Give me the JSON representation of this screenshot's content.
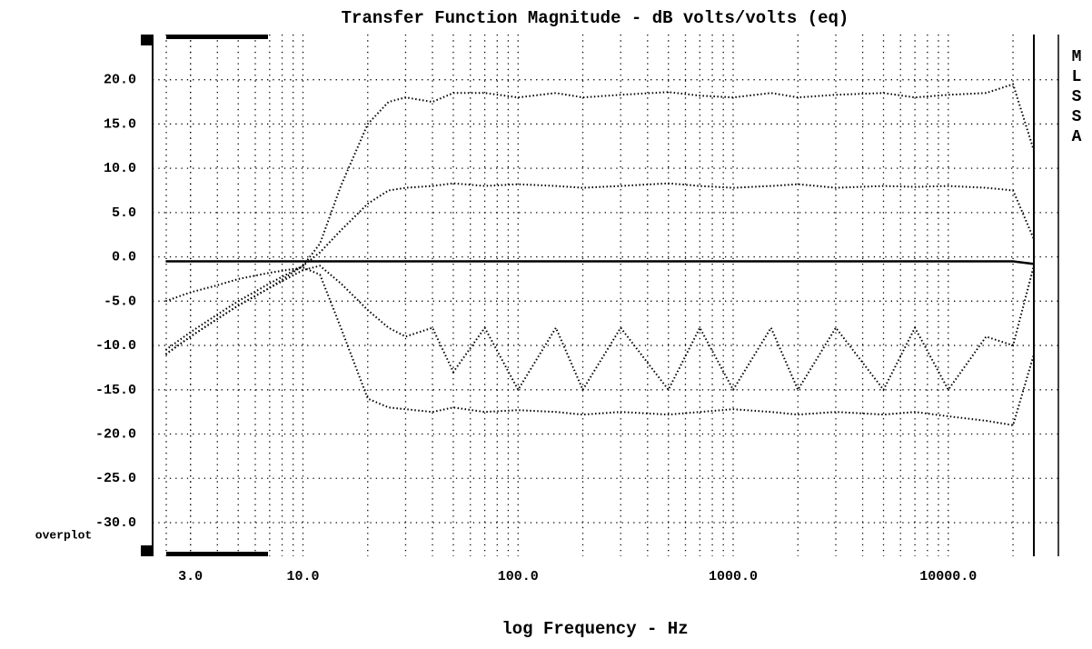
{
  "chart_data": {
    "type": "line",
    "title": "Transfer Function Magnitude - dB volts/volts (eq)",
    "xlabel": "log Frequency - Hz",
    "side_label": "MLSSA",
    "corner_label": "overplot",
    "log_x": true,
    "grid": true,
    "x": [
      2.3,
      3,
      4,
      5,
      7,
      10,
      12,
      15,
      20,
      25,
      30,
      40,
      50,
      70,
      100,
      150,
      200,
      300,
      500,
      700,
      1000,
      1500,
      2000,
      3000,
      5000,
      7000,
      10000,
      15000,
      20000,
      25000
    ],
    "series": [
      {
        "color": "#000000",
        "line_style": "solid",
        "values": [
          -0.5,
          -0.5,
          -0.5,
          -0.5,
          -0.5,
          -0.5,
          -0.5,
          -0.5,
          -0.5,
          -0.5,
          -0.5,
          -0.5,
          -0.5,
          -0.5,
          -0.5,
          -0.5,
          -0.5,
          -0.5,
          -0.5,
          -0.5,
          -0.5,
          -0.5,
          -0.5,
          -0.5,
          -0.5,
          -0.5,
          -0.5,
          -0.5,
          -0.5,
          -0.8
        ]
      },
      {
        "color": "#000000",
        "line_style": "dotted",
        "values": [
          -11,
          -9,
          -7,
          -5.5,
          -3.5,
          -1,
          1.5,
          8,
          15,
          17.5,
          18,
          17.5,
          18.5,
          18.5,
          18,
          18.5,
          18,
          18.3,
          18.6,
          18.2,
          18,
          18.5,
          18,
          18.3,
          18.5,
          18,
          18.3,
          18.5,
          19.5,
          12
        ]
      },
      {
        "color": "#000000",
        "line_style": "dotted",
        "values": [
          -10.5,
          -8.5,
          -6.5,
          -5,
          -3,
          -1,
          0.5,
          3,
          6,
          7.5,
          7.8,
          8,
          8.3,
          8,
          8.2,
          8,
          7.8,
          8,
          8.3,
          8,
          7.8,
          8,
          8.2,
          7.8,
          8,
          7.9,
          8,
          7.8,
          7.5,
          2
        ]
      },
      {
        "color": "#000000",
        "line_style": "dotted",
        "values": [
          -5,
          -4,
          -3.2,
          -2.5,
          -1.8,
          -1.2,
          -2,
          -8,
          -16,
          -17,
          -17.2,
          -17.5,
          -17,
          -17.5,
          -17.3,
          -17.5,
          -17.8,
          -17.5,
          -17.8,
          -17.5,
          -17.2,
          -17.5,
          -17.8,
          -17.5,
          -17.8,
          -17.5,
          -18,
          -18.5,
          -19,
          -11
        ]
      },
      {
        "color": "#000000",
        "line_style": "dotted",
        "values": [
          -11,
          -9,
          -7,
          -5.5,
          -3.5,
          -1.5,
          -1,
          -3,
          -6,
          -8,
          -9,
          -8,
          -13,
          -8,
          -15,
          -8,
          -15,
          -8,
          -15,
          -8,
          -15,
          -8,
          -15,
          -8,
          -15,
          -8,
          -15,
          -9,
          -10,
          -1
        ]
      }
    ],
    "xlim": [
      2,
      25000
    ],
    "xticks": [
      {
        "value": 3,
        "label": "3.0"
      },
      {
        "value": 10,
        "label": "10.0"
      },
      {
        "value": 100,
        "label": "100.0"
      },
      {
        "value": 1000,
        "label": "1000.0"
      },
      {
        "value": 10000,
        "label": "10000.0"
      }
    ],
    "xminorticks": [
      3,
      4,
      5,
      6,
      7,
      8,
      9,
      20,
      30,
      40,
      50,
      60,
      70,
      80,
      90,
      200,
      300,
      400,
      500,
      600,
      700,
      800,
      900,
      2000,
      3000,
      4000,
      5000,
      6000,
      7000,
      8000,
      9000,
      20000
    ],
    "ylim": [
      -33.8,
      25.1
    ],
    "yticks": [
      {
        "value": 20,
        "label": "20.0"
      },
      {
        "value": 15,
        "label": "15.0"
      },
      {
        "value": 10,
        "label": "10.0"
      },
      {
        "value": 5,
        "label": "5.0"
      },
      {
        "value": 0,
        "label": "0.0"
      },
      {
        "value": -5,
        "label": "-5.0"
      },
      {
        "value": -10,
        "label": "-10.0"
      },
      {
        "value": -15,
        "label": "-15.0"
      },
      {
        "value": -20,
        "label": "-20.0"
      },
      {
        "value": -25,
        "label": "-25.0"
      },
      {
        "value": -30,
        "label": "-30.0"
      }
    ]
  }
}
